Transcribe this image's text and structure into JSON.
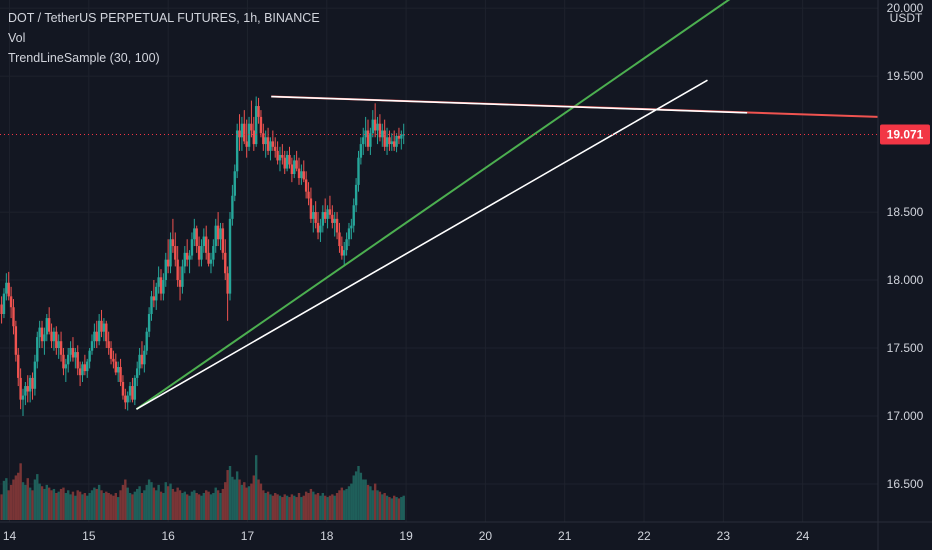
{
  "legend": {
    "symbol": "DOT / TetherUS PERPETUAL FUTURES, 1h, BINANCE",
    "volume": "Vol",
    "indicator": "TrendLineSample (30, 100)"
  },
  "colors": {
    "background": "#131722",
    "grid": "#1e222d",
    "text": "#d1d4dc",
    "up": "#26a69a",
    "down": "#ef5350",
    "up_volume": "#1f5f5a",
    "down_volume": "#7a3536",
    "support_line": "#4caf50",
    "resistance_line": "#f05350",
    "highlight_line": "#ffffff",
    "price_tag": "#f23645"
  },
  "chart_data": {
    "type": "candlestick",
    "title": "DOT / TetherUS PERPETUAL FUTURES, 1h, BINANCE",
    "x_tick_labels": [
      "14",
      "15",
      "16",
      "17",
      "18",
      "19",
      "20",
      "21",
      "22",
      "23",
      "24"
    ],
    "x_ticks": [
      14,
      15,
      16,
      17,
      18,
      19,
      20,
      21,
      22,
      23,
      24
    ],
    "x_range": [
      13.88,
      24.95
    ],
    "y_axis_unit": "USDT",
    "y_tick_labels": [
      "16.500",
      "17.000",
      "17.500",
      "18.000",
      "18.500",
      "19.500",
      "20.000"
    ],
    "y_ticks": [
      16.5,
      17.0,
      17.5,
      18.0,
      18.5,
      19.5,
      20.0
    ],
    "y_range": [
      16.22,
      20.06
    ],
    "last_price": 19.071,
    "last_price_label": "19.071",
    "volume_axis_max": 1.0,
    "candles": [
      [
        13.9,
        17.82,
        17.88,
        17.68,
        17.75,
        0.19
      ],
      [
        13.93,
        17.75,
        17.94,
        17.72,
        17.9,
        0.29
      ],
      [
        13.96,
        17.9,
        18.05,
        17.85,
        17.98,
        0.31
      ],
      [
        13.99,
        17.98,
        18.06,
        17.85,
        17.88,
        0.22
      ],
      [
        14.02,
        17.88,
        17.95,
        17.72,
        17.8,
        0.26
      ],
      [
        14.05,
        17.8,
        17.86,
        17.6,
        17.66,
        0.3
      ],
      [
        14.08,
        17.66,
        17.7,
        17.4,
        17.45,
        0.33
      ],
      [
        14.11,
        17.45,
        17.5,
        17.22,
        17.28,
        0.35
      ],
      [
        14.14,
        17.28,
        17.35,
        17.05,
        17.12,
        0.42
      ],
      [
        14.17,
        17.12,
        17.2,
        17.0,
        17.15,
        0.28
      ],
      [
        14.2,
        17.15,
        17.25,
        17.08,
        17.22,
        0.26
      ],
      [
        14.23,
        17.22,
        17.3,
        17.1,
        17.18,
        0.31
      ],
      [
        14.26,
        17.18,
        17.3,
        17.1,
        17.28,
        0.24
      ],
      [
        14.29,
        17.28,
        17.32,
        17.12,
        17.2,
        0.22
      ],
      [
        14.32,
        17.2,
        17.45,
        17.15,
        17.4,
        0.3
      ],
      [
        14.35,
        17.4,
        17.62,
        17.35,
        17.58,
        0.34
      ],
      [
        14.38,
        17.58,
        17.7,
        17.5,
        17.65,
        0.27
      ],
      [
        14.41,
        17.65,
        17.7,
        17.5,
        17.55,
        0.25
      ],
      [
        14.44,
        17.55,
        17.65,
        17.45,
        17.6,
        0.23
      ],
      [
        14.47,
        17.6,
        17.75,
        17.55,
        17.72,
        0.26
      ],
      [
        14.5,
        17.72,
        17.8,
        17.6,
        17.62,
        0.24
      ],
      [
        14.53,
        17.62,
        17.68,
        17.5,
        17.55,
        0.22
      ],
      [
        14.56,
        17.55,
        17.65,
        17.48,
        17.62,
        0.23
      ],
      [
        14.59,
        17.62,
        17.66,
        17.45,
        17.5,
        0.2
      ],
      [
        14.62,
        17.5,
        17.6,
        17.42,
        17.55,
        0.21
      ],
      [
        14.65,
        17.55,
        17.62,
        17.4,
        17.45,
        0.23
      ],
      [
        14.68,
        17.45,
        17.5,
        17.3,
        17.35,
        0.24
      ],
      [
        14.71,
        17.35,
        17.42,
        17.25,
        17.38,
        0.2
      ],
      [
        14.74,
        17.38,
        17.5,
        17.32,
        17.45,
        0.22
      ],
      [
        14.77,
        17.45,
        17.55,
        17.4,
        17.5,
        0.19
      ],
      [
        14.8,
        17.5,
        17.58,
        17.4,
        17.43,
        0.21
      ],
      [
        14.83,
        17.43,
        17.5,
        17.35,
        17.47,
        0.18
      ],
      [
        14.86,
        17.47,
        17.52,
        17.3,
        17.35,
        0.22
      ],
      [
        14.89,
        17.35,
        17.4,
        17.22,
        17.3,
        0.21
      ],
      [
        14.92,
        17.3,
        17.4,
        17.25,
        17.38,
        0.19
      ],
      [
        14.95,
        17.38,
        17.45,
        17.3,
        17.33,
        0.2
      ],
      [
        14.98,
        17.33,
        17.42,
        17.28,
        17.4,
        0.18
      ],
      [
        15.01,
        17.4,
        17.5,
        17.35,
        17.48,
        0.2
      ],
      [
        15.04,
        17.48,
        17.6,
        17.45,
        17.55,
        0.22
      ],
      [
        15.07,
        17.55,
        17.68,
        17.5,
        17.62,
        0.24
      ],
      [
        15.1,
        17.62,
        17.7,
        17.5,
        17.55,
        0.23
      ],
      [
        15.13,
        17.55,
        17.75,
        17.52,
        17.7,
        0.26
      ],
      [
        15.16,
        17.7,
        17.78,
        17.58,
        17.62,
        0.22
      ],
      [
        15.19,
        17.62,
        17.72,
        17.55,
        17.68,
        0.2
      ],
      [
        15.22,
        17.68,
        17.7,
        17.5,
        17.55,
        0.21
      ],
      [
        15.25,
        17.55,
        17.62,
        17.45,
        17.5,
        0.2
      ],
      [
        15.28,
        17.5,
        17.55,
        17.38,
        17.42,
        0.19
      ],
      [
        15.31,
        17.42,
        17.48,
        17.35,
        17.4,
        0.18
      ],
      [
        15.34,
        17.4,
        17.46,
        17.3,
        17.32,
        0.2
      ],
      [
        15.37,
        17.32,
        17.4,
        17.25,
        17.36,
        0.17
      ],
      [
        15.4,
        17.36,
        17.42,
        17.22,
        17.25,
        0.22
      ],
      [
        15.43,
        17.25,
        17.3,
        17.12,
        17.15,
        0.26
      ],
      [
        15.46,
        17.15,
        17.2,
        17.05,
        17.1,
        0.3
      ],
      [
        15.49,
        17.1,
        17.18,
        17.04,
        17.15,
        0.24
      ],
      [
        15.52,
        17.15,
        17.25,
        17.1,
        17.22,
        0.2
      ],
      [
        15.55,
        17.22,
        17.28,
        17.1,
        17.12,
        0.19
      ],
      [
        15.58,
        17.12,
        17.3,
        17.08,
        17.28,
        0.21
      ],
      [
        15.61,
        17.28,
        17.4,
        17.22,
        17.35,
        0.23
      ],
      [
        15.64,
        17.35,
        17.5,
        17.3,
        17.45,
        0.25
      ],
      [
        15.67,
        17.45,
        17.55,
        17.35,
        17.38,
        0.2
      ],
      [
        15.7,
        17.38,
        17.52,
        17.32,
        17.48,
        0.22
      ],
      [
        15.73,
        17.48,
        17.65,
        17.45,
        17.62,
        0.26
      ],
      [
        15.76,
        17.62,
        17.8,
        17.58,
        17.75,
        0.3
      ],
      [
        15.79,
        17.75,
        17.92,
        17.7,
        17.88,
        0.28
      ],
      [
        15.82,
        17.88,
        18.0,
        17.8,
        17.85,
        0.24
      ],
      [
        15.85,
        17.85,
        17.98,
        17.78,
        17.95,
        0.22
      ],
      [
        15.88,
        17.95,
        18.1,
        17.9,
        18.02,
        0.26
      ],
      [
        15.91,
        18.02,
        18.08,
        17.85,
        17.9,
        0.21
      ],
      [
        15.94,
        17.9,
        18.05,
        17.85,
        18.0,
        0.2
      ],
      [
        15.97,
        18.0,
        18.2,
        17.95,
        18.15,
        0.28
      ],
      [
        16.0,
        18.15,
        18.3,
        18.05,
        18.1,
        0.25
      ],
      [
        16.03,
        18.1,
        18.35,
        18.05,
        18.3,
        0.27
      ],
      [
        16.06,
        18.3,
        18.45,
        18.2,
        18.25,
        0.23
      ],
      [
        16.09,
        18.25,
        18.35,
        18.1,
        18.15,
        0.21
      ],
      [
        16.12,
        18.15,
        18.25,
        17.95,
        18.0,
        0.24
      ],
      [
        16.15,
        18.0,
        18.1,
        17.85,
        17.95,
        0.22
      ],
      [
        16.18,
        17.95,
        18.15,
        17.9,
        18.1,
        0.2
      ],
      [
        16.21,
        18.1,
        18.25,
        18.05,
        18.2,
        0.21
      ],
      [
        16.24,
        18.2,
        18.3,
        18.1,
        18.15,
        0.19
      ],
      [
        16.27,
        18.15,
        18.22,
        18.05,
        18.18,
        0.18
      ],
      [
        16.3,
        18.18,
        18.35,
        18.15,
        18.3,
        0.21
      ],
      [
        16.33,
        18.3,
        18.45,
        18.25,
        18.38,
        0.22
      ],
      [
        16.36,
        18.38,
        18.4,
        18.2,
        18.25,
        0.2
      ],
      [
        16.39,
        18.25,
        18.32,
        18.1,
        18.15,
        0.19
      ],
      [
        16.42,
        18.15,
        18.3,
        18.1,
        18.25,
        0.18
      ],
      [
        16.45,
        18.25,
        18.38,
        18.2,
        18.32,
        0.2
      ],
      [
        16.48,
        18.32,
        18.4,
        18.15,
        18.2,
        0.22
      ],
      [
        16.51,
        18.2,
        18.3,
        18.1,
        18.12,
        0.21
      ],
      [
        16.54,
        18.12,
        18.2,
        18.05,
        18.15,
        0.19
      ],
      [
        16.57,
        18.15,
        18.3,
        18.1,
        18.25,
        0.2
      ],
      [
        16.6,
        18.25,
        18.45,
        18.2,
        18.4,
        0.24
      ],
      [
        16.63,
        18.4,
        18.5,
        18.25,
        18.3,
        0.22
      ],
      [
        16.66,
        18.3,
        18.42,
        18.22,
        18.38,
        0.2
      ],
      [
        16.69,
        18.38,
        18.42,
        18.15,
        18.2,
        0.23
      ],
      [
        16.72,
        18.2,
        18.3,
        18.0,
        18.05,
        0.28
      ],
      [
        16.75,
        18.05,
        18.1,
        17.7,
        17.9,
        0.37
      ],
      [
        16.78,
        17.9,
        18.5,
        17.85,
        18.45,
        0.4
      ],
      [
        16.81,
        18.45,
        18.7,
        18.4,
        18.62,
        0.32
      ],
      [
        16.84,
        18.62,
        18.85,
        18.58,
        18.8,
        0.3
      ],
      [
        16.87,
        18.8,
        19.15,
        18.75,
        19.1,
        0.36
      ],
      [
        16.9,
        19.1,
        19.22,
        18.95,
        19.05,
        0.3
      ],
      [
        16.93,
        19.05,
        19.2,
        18.95,
        19.15,
        0.26
      ],
      [
        16.96,
        19.15,
        19.25,
        19.0,
        19.02,
        0.28
      ],
      [
        16.99,
        19.02,
        19.18,
        18.9,
        18.98,
        0.24
      ],
      [
        17.02,
        18.98,
        19.2,
        18.95,
        19.15,
        0.25
      ],
      [
        17.05,
        19.15,
        19.32,
        19.05,
        19.1,
        0.27
      ],
      [
        17.08,
        19.1,
        19.2,
        18.95,
        19.0,
        0.33
      ],
      [
        17.11,
        19.0,
        19.35,
        18.98,
        19.28,
        0.48
      ],
      [
        17.14,
        19.28,
        19.34,
        19.15,
        19.2,
        0.3
      ],
      [
        17.17,
        19.2,
        19.25,
        19.05,
        19.08,
        0.27
      ],
      [
        17.2,
        19.08,
        19.15,
        18.95,
        19.0,
        0.22
      ],
      [
        17.23,
        19.0,
        19.1,
        18.9,
        19.05,
        0.2
      ],
      [
        17.26,
        19.05,
        19.12,
        18.92,
        18.95,
        0.21
      ],
      [
        17.29,
        18.95,
        19.05,
        18.88,
        19.02,
        0.19
      ],
      [
        17.32,
        19.02,
        19.1,
        18.95,
        18.98,
        0.18
      ],
      [
        17.35,
        18.98,
        19.05,
        18.9,
        18.95,
        0.2
      ],
      [
        17.38,
        18.95,
        19.02,
        18.85,
        18.88,
        0.19
      ],
      [
        17.41,
        18.88,
        18.98,
        18.8,
        18.92,
        0.18
      ],
      [
        17.44,
        18.92,
        19.0,
        18.85,
        18.9,
        0.17
      ],
      [
        17.47,
        18.9,
        18.95,
        18.78,
        18.82,
        0.19
      ],
      [
        17.5,
        18.82,
        18.95,
        18.8,
        18.92,
        0.18
      ],
      [
        17.53,
        18.92,
        18.98,
        18.82,
        18.85,
        0.17
      ],
      [
        17.56,
        18.85,
        18.9,
        18.72,
        18.78,
        0.19
      ],
      [
        17.59,
        18.78,
        18.92,
        18.75,
        18.88,
        0.18
      ],
      [
        17.62,
        18.88,
        18.95,
        18.8,
        18.82,
        0.17
      ],
      [
        17.65,
        18.82,
        18.9,
        18.7,
        18.75,
        0.2
      ],
      [
        17.68,
        18.75,
        18.85,
        18.7,
        18.8,
        0.17
      ],
      [
        17.71,
        18.8,
        18.88,
        18.72,
        18.74,
        0.18
      ],
      [
        17.74,
        18.74,
        18.8,
        18.6,
        18.65,
        0.21
      ],
      [
        17.77,
        18.65,
        18.72,
        18.55,
        18.6,
        0.2
      ],
      [
        17.8,
        18.6,
        18.68,
        18.42,
        18.45,
        0.23
      ],
      [
        17.83,
        18.45,
        18.55,
        18.35,
        18.5,
        0.21
      ],
      [
        17.86,
        18.5,
        18.58,
        18.38,
        18.42,
        0.19
      ],
      [
        17.89,
        18.42,
        18.5,
        18.3,
        18.35,
        0.2
      ],
      [
        17.92,
        18.35,
        18.45,
        18.28,
        18.4,
        0.18
      ],
      [
        17.95,
        18.4,
        18.55,
        18.35,
        18.5,
        0.2
      ],
      [
        17.98,
        18.5,
        18.6,
        18.42,
        18.45,
        0.18
      ],
      [
        18.01,
        18.45,
        18.55,
        18.38,
        18.52,
        0.17
      ],
      [
        18.04,
        18.52,
        18.62,
        18.45,
        18.48,
        0.18
      ],
      [
        18.07,
        18.48,
        18.55,
        18.38,
        18.42,
        0.19
      ],
      [
        18.1,
        18.42,
        18.5,
        18.32,
        18.45,
        0.18
      ],
      [
        18.13,
        18.45,
        18.5,
        18.3,
        18.35,
        0.2
      ],
      [
        18.16,
        18.35,
        18.42,
        18.2,
        18.25,
        0.22
      ],
      [
        18.19,
        18.25,
        18.32,
        18.15,
        18.18,
        0.24
      ],
      [
        18.22,
        18.18,
        18.28,
        18.1,
        18.22,
        0.22
      ],
      [
        18.25,
        18.22,
        18.35,
        18.18,
        18.3,
        0.23
      ],
      [
        18.28,
        18.3,
        18.42,
        18.25,
        18.38,
        0.25
      ],
      [
        18.31,
        18.38,
        18.45,
        18.3,
        18.4,
        0.27
      ],
      [
        18.34,
        18.4,
        18.6,
        18.35,
        18.55,
        0.33
      ],
      [
        18.37,
        18.55,
        18.75,
        18.5,
        18.7,
        0.36
      ],
      [
        18.4,
        18.7,
        18.95,
        18.65,
        18.9,
        0.4
      ],
      [
        18.43,
        18.9,
        19.05,
        18.85,
        19.0,
        0.35
      ],
      [
        18.46,
        19.0,
        19.12,
        18.92,
        19.05,
        0.3
      ],
      [
        18.49,
        19.05,
        19.2,
        18.98,
        19.1,
        0.3
      ],
      [
        18.52,
        19.1,
        19.18,
        18.95,
        18.98,
        0.26
      ],
      [
        18.55,
        18.98,
        19.12,
        18.92,
        19.08,
        0.25
      ],
      [
        18.58,
        19.08,
        19.25,
        19.05,
        19.18,
        0.22
      ],
      [
        18.61,
        19.18,
        19.3,
        19.05,
        19.1,
        0.27
      ],
      [
        18.64,
        19.1,
        19.2,
        19.0,
        19.15,
        0.22
      ],
      [
        18.67,
        19.15,
        19.22,
        19.02,
        19.05,
        0.21
      ],
      [
        18.7,
        19.05,
        19.15,
        18.98,
        19.1,
        0.19
      ],
      [
        18.73,
        19.1,
        19.18,
        18.95,
        18.98,
        0.2
      ],
      [
        18.76,
        18.98,
        19.12,
        18.92,
        19.05,
        0.18
      ],
      [
        18.79,
        19.05,
        19.1,
        18.95,
        19.0,
        0.17
      ],
      [
        18.82,
        19.0,
        19.08,
        18.95,
        19.02,
        0.16
      ],
      [
        18.85,
        19.02,
        19.1,
        18.95,
        18.98,
        0.18
      ],
      [
        18.88,
        18.98,
        19.08,
        18.94,
        19.06,
        0.17
      ],
      [
        18.91,
        19.06,
        19.12,
        19.0,
        19.04,
        0.16
      ],
      [
        18.94,
        19.04,
        19.1,
        18.96,
        19.07,
        0.17
      ],
      [
        18.97,
        19.07,
        19.15,
        19.0,
        19.071,
        0.18
      ]
    ],
    "annotation_lines": [
      {
        "name": "Support trend line",
        "color": "#4caf50",
        "x1": 15.6,
        "y1": 17.05,
        "x2": 24.95,
        "y2": 20.82
      },
      {
        "name": "Resistance trend line",
        "color": "#f05350",
        "x1": 17.3,
        "y1": 19.35,
        "x2": 24.95,
        "y2": 19.2
      },
      {
        "name": "Support highlight segment",
        "color": "#ffffff",
        "x1": 15.6,
        "y1": 17.05,
        "x2": 22.8,
        "y2": 19.47
      },
      {
        "name": "Resistance highlight segment",
        "color": "#ffffff",
        "x1": 17.3,
        "y1": 19.35,
        "x2": 23.3,
        "y2": 19.23
      }
    ],
    "grid": true,
    "legend_position": "top-left"
  }
}
